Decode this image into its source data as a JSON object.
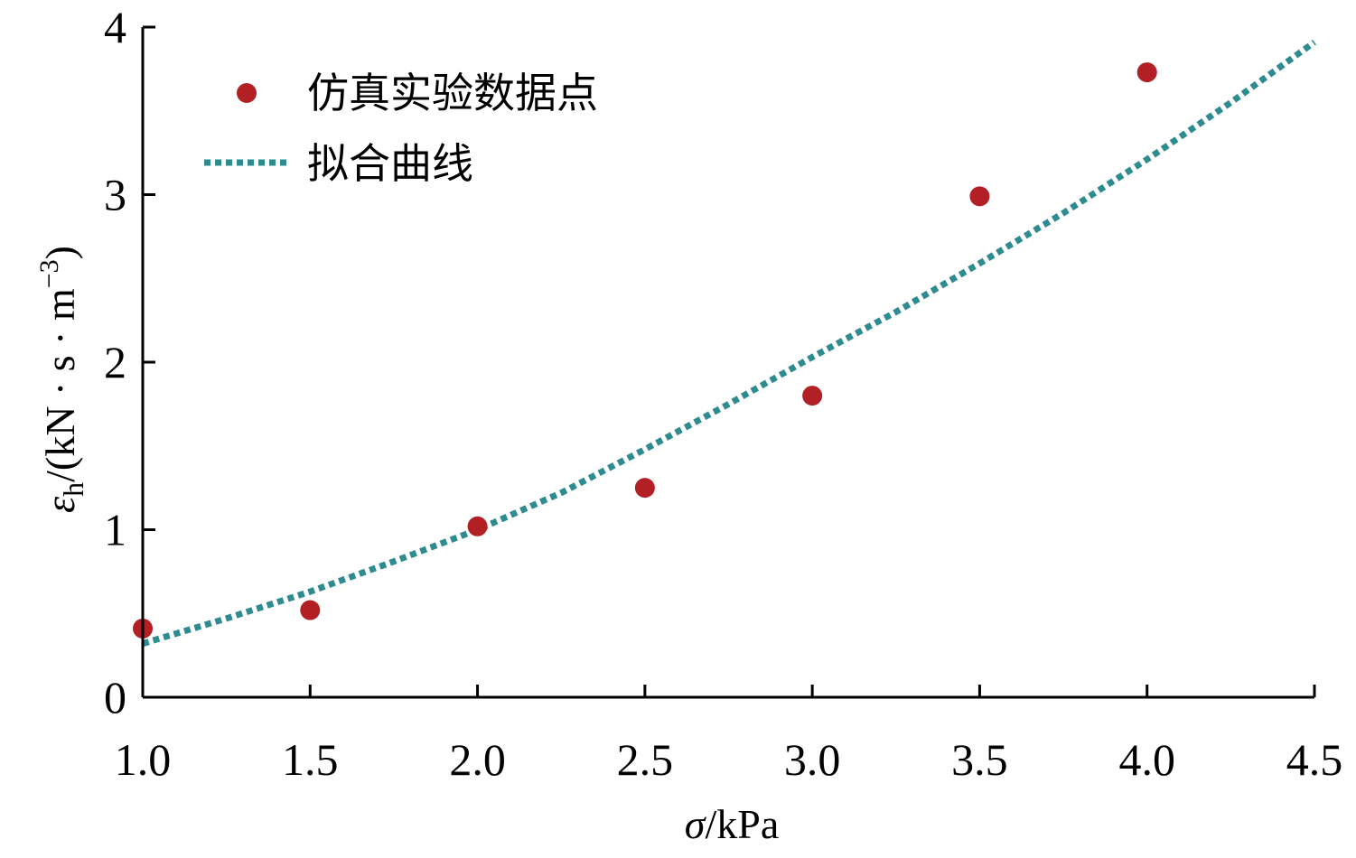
{
  "chart_data": {
    "type": "scatter",
    "xlabel": "σ/kPa",
    "ylabel": "εh/(kN·s·m−3)",
    "xlabel_parts": {
      "symbol": "σ",
      "unit": "/kPa"
    },
    "ylabel_parts": {
      "symbol": "ε",
      "subscript": "h",
      "unit_pre": "/(kN · s · m",
      "superscript": "−3",
      "unit_post": ")"
    },
    "xlim": [
      1.0,
      4.5
    ],
    "ylim": [
      0,
      4
    ],
    "x_ticks": [
      1.0,
      1.5,
      2.0,
      2.5,
      3.0,
      3.5,
      4.0,
      4.5
    ],
    "x_tick_labels": [
      "1.0",
      "1.5",
      "2.0",
      "2.5",
      "3.0",
      "3.5",
      "4.0",
      "4.5"
    ],
    "y_ticks": [
      0,
      1,
      2,
      3,
      4
    ],
    "y_tick_labels": [
      "0",
      "1",
      "2",
      "3",
      "4"
    ],
    "grid": false,
    "legend_position": "top-left",
    "series": [
      {
        "name": "仿真实验数据点",
        "kind": "scatter",
        "color": "#b22025",
        "x": [
          1.0,
          1.5,
          2.0,
          2.5,
          3.0,
          3.5,
          4.0
        ],
        "y": [
          0.41,
          0.52,
          1.02,
          1.25,
          1.8,
          2.99,
          3.73
        ]
      },
      {
        "name": "拟合曲线",
        "kind": "line",
        "style": "dotted",
        "color": "#2e8b8f",
        "x": [
          1.0,
          1.25,
          1.5,
          1.75,
          2.0,
          2.25,
          2.5,
          2.75,
          3.0,
          3.25,
          3.5,
          3.75,
          4.0,
          4.25,
          4.5
        ],
        "y": [
          0.32,
          0.47,
          0.63,
          0.81,
          1.0,
          1.22,
          1.48,
          1.75,
          2.03,
          2.3,
          2.59,
          2.89,
          3.21,
          3.55,
          3.91
        ]
      }
    ]
  }
}
